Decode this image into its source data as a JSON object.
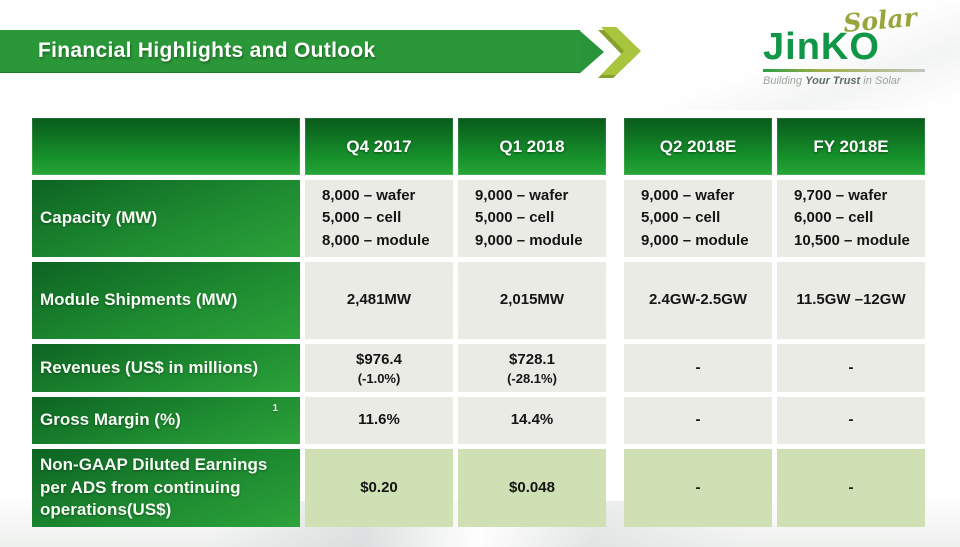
{
  "slide": {
    "title": "Financial Highlights and Outlook"
  },
  "logo": {
    "script": "Solar",
    "wordmark": "JinKO",
    "tagline_prefix": "Building ",
    "tagline_emphasis": "Your Trust",
    "tagline_suffix": " in Solar"
  },
  "colors": {
    "banner_green": "#2a9838",
    "banner_lime": "#a9c53e",
    "header_green_top": "#085a1b",
    "header_green_bottom": "#28a538",
    "label_green_dark": "#0d6423",
    "label_green_light": "#2da23a",
    "cell_gray": "#ebebe6",
    "cell_green_tint": "#cfe0b5",
    "logo_green": "#0f9747",
    "logo_script_olive": "#97a53b"
  },
  "table": {
    "columns": [
      "",
      "Q4 2017",
      "Q1 2018",
      "Q2 2018E",
      "FY 2018E"
    ],
    "rows": [
      {
        "label": "Capacity (MW)",
        "sup": "",
        "cells": [
          {
            "main": "8,000 – wafer\n5,000 – cell\n8,000 – module",
            "sub": ""
          },
          {
            "main": "9,000 – wafer\n5,000 – cell\n9,000 – module",
            "sub": ""
          },
          {
            "main": "9,000 – wafer\n5,000 – cell\n9,000 – module",
            "sub": ""
          },
          {
            "main": "9,700 – wafer\n6,000 – cell\n10,500 – module",
            "sub": ""
          }
        ]
      },
      {
        "label": "Module Shipments (MW)",
        "sup": "",
        "cells": [
          {
            "main": "2,481MW",
            "sub": ""
          },
          {
            "main": "2,015MW",
            "sub": ""
          },
          {
            "main": "2.4GW-2.5GW",
            "sub": ""
          },
          {
            "main": "11.5GW –12GW",
            "sub": ""
          }
        ]
      },
      {
        "label": "Revenues (US$ in millions)",
        "sup": "",
        "cells": [
          {
            "main": "$976.4",
            "sub": "(-1.0%)"
          },
          {
            "main": "$728.1",
            "sub": "(-28.1%)"
          },
          {
            "main": "-",
            "sub": ""
          },
          {
            "main": "-",
            "sub": ""
          }
        ]
      },
      {
        "label": "Gross Margin (%)",
        "sup": "1",
        "cells": [
          {
            "main": "11.6%",
            "sub": ""
          },
          {
            "main": "14.4%",
            "sub": ""
          },
          {
            "main": "-",
            "sub": ""
          },
          {
            "main": "-",
            "sub": ""
          }
        ]
      },
      {
        "label": "Non-GAAP Diluted Earnings per ADS from continuing operations(US$)",
        "sup": "",
        "cells": [
          {
            "main": "$0.20",
            "sub": ""
          },
          {
            "main": "$0.048",
            "sub": ""
          },
          {
            "main": "-",
            "sub": ""
          },
          {
            "main": "-",
            "sub": ""
          }
        ]
      }
    ]
  }
}
